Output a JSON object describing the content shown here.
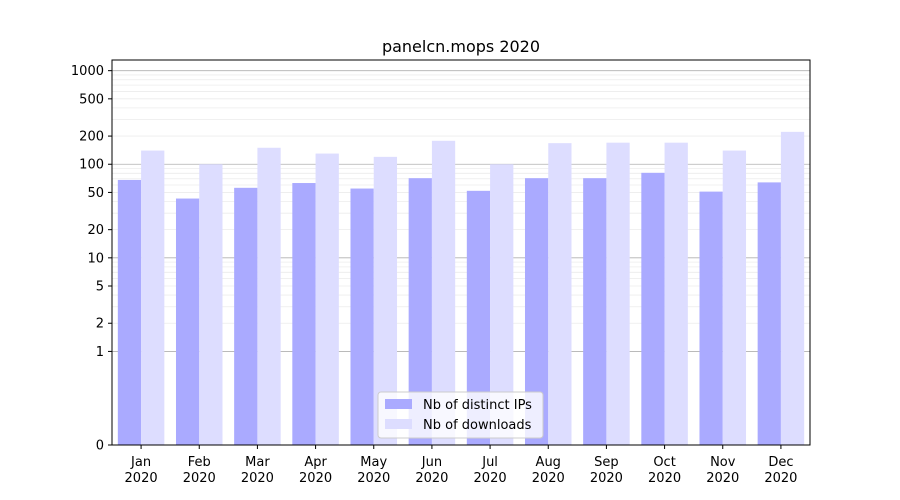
{
  "chart_data": {
    "type": "bar",
    "title": "panelcn.mops 2020",
    "xlabel": "",
    "ylabel": "",
    "y_scale": "symlog",
    "ylim": [
      0,
      1300
    ],
    "y_ticks": [
      0,
      1,
      2,
      5,
      10,
      20,
      50,
      100,
      200,
      500,
      1000
    ],
    "y_tick_labels": [
      "0",
      "1",
      "2",
      "5",
      "10",
      "20",
      "50",
      "100",
      "200",
      "500",
      "1000"
    ],
    "grid": true,
    "legend_position": "bottom-center",
    "categories": [
      [
        "Jan",
        "2020"
      ],
      [
        "Feb",
        "2020"
      ],
      [
        "Mar",
        "2020"
      ],
      [
        "Apr",
        "2020"
      ],
      [
        "May",
        "2020"
      ],
      [
        "Jun",
        "2020"
      ],
      [
        "Jul",
        "2020"
      ],
      [
        "Aug",
        "2020"
      ],
      [
        "Sep",
        "2020"
      ],
      [
        "Oct",
        "2020"
      ],
      [
        "Nov",
        "2020"
      ],
      [
        "Dec",
        "2020"
      ]
    ],
    "series": [
      {
        "name": "Nb of distinct IPs",
        "color": "#aaaaff",
        "values": [
          68,
          43,
          56,
          63,
          55,
          71,
          52,
          71,
          71,
          81,
          51,
          64
        ]
      },
      {
        "name": "Nb of downloads",
        "color": "#ddddff",
        "values": [
          140,
          100,
          150,
          130,
          120,
          178,
          100,
          168,
          170,
          170,
          140,
          222
        ]
      }
    ]
  }
}
